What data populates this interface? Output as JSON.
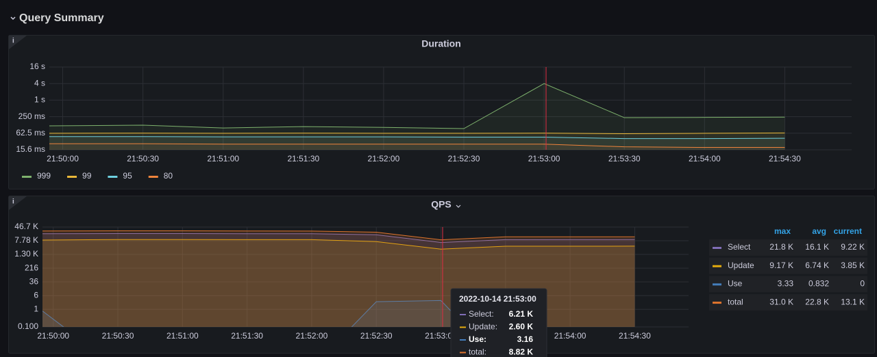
{
  "header": {
    "title": "Query Summary"
  },
  "chart_data": [
    {
      "type": "line",
      "title": "Duration",
      "yscale": "log",
      "grid": true,
      "legend": "bottom",
      "x": [
        "21:49:55",
        "21:50:30",
        "21:51:00",
        "21:51:30",
        "21:52:00",
        "21:52:30",
        "21:53:00",
        "21:53:30",
        "21:54:00",
        "21:54:30"
      ],
      "xlim": [
        "21:49:55",
        "21:54:55"
      ],
      "xticks": [
        "21:50:00",
        "21:50:30",
        "21:51:00",
        "21:51:30",
        "21:52:00",
        "21:52:30",
        "21:53:00",
        "21:53:30",
        "21:54:00",
        "21:54:30"
      ],
      "ylim": [
        15.6,
        16000
      ],
      "yticks": [
        {
          "value": 15.6,
          "label": "15.6 ms"
        },
        {
          "value": 62.5,
          "label": "62.5 ms"
        },
        {
          "value": 250,
          "label": "250 ms"
        },
        {
          "value": 1000,
          "label": "1 s"
        },
        {
          "value": 4000,
          "label": "4 s"
        },
        {
          "value": 16000,
          "label": "16 s"
        }
      ],
      "series": [
        {
          "name": "999",
          "color": "#7eb26d",
          "values": [
            116,
            123,
            97,
            109,
            102,
            92,
            4000,
            230,
            235,
            240
          ]
        },
        {
          "name": "99",
          "color": "#eab839",
          "values": [
            62,
            63,
            62,
            63,
            62,
            62,
            63,
            60,
            62,
            64
          ]
        },
        {
          "name": "95",
          "color": "#6ed0e0",
          "values": [
            47,
            47,
            46,
            46,
            46,
            45,
            45,
            40,
            40,
            41
          ]
        },
        {
          "name": "80",
          "color": "#ef843c",
          "values": [
            26,
            26,
            25,
            25,
            25,
            25,
            25,
            20,
            19,
            19
          ]
        }
      ]
    },
    {
      "type": "line",
      "title": "QPS",
      "yscale": "log",
      "grid": true,
      "legend": "right",
      "x": [
        "21:49:55",
        "21:50:30",
        "21:51:00",
        "21:51:30",
        "21:52:00",
        "21:52:30",
        "21:53:00",
        "21:53:30",
        "21:54:00",
        "21:54:30"
      ],
      "xlim": [
        "21:49:55",
        "21:54:55"
      ],
      "xticks": [
        "21:50:00",
        "21:50:30",
        "21:51:00",
        "21:51:30",
        "21:52:00",
        "21:52:30",
        "21:53:00",
        "21:53:30",
        "21:54:00",
        "21:54:30"
      ],
      "ylim": [
        0.1,
        46700
      ],
      "yticks": [
        {
          "value": 0.1,
          "label": "0.100"
        },
        1,
        6,
        36,
        216,
        {
          "value": 1300,
          "label": "1.30 K"
        },
        {
          "value": 7780,
          "label": "7.78 K"
        },
        {
          "value": 46700,
          "label": "46.7 K"
        }
      ],
      "series": [
        {
          "name": "Select",
          "color": "#806eb7",
          "values": [
            19500,
            20000,
            20000,
            19500,
            19500,
            17000,
            6210,
            9000,
            9100,
            9220
          ]
        },
        {
          "name": "Update",
          "color": "#e5ac0e",
          "values": [
            8500,
            9170,
            9170,
            9000,
            9000,
            7000,
            2600,
            3800,
            3800,
            3850
          ]
        },
        {
          "name": "Use",
          "color": "#447ebc",
          "values": [
            0.8,
            0,
            0,
            0,
            0,
            2.7,
            3.16,
            0,
            0,
            0
          ]
        },
        {
          "name": "total",
          "color": "#e0752d",
          "values": [
            28000,
            28500,
            28500,
            28000,
            27500,
            24000,
            8820,
            13000,
            13000,
            13100
          ]
        }
      ],
      "legend_table": {
        "columns": [
          "max",
          "avg",
          "current"
        ],
        "rows": [
          [
            "21.8 K",
            "16.1 K",
            "9.22 K"
          ],
          [
            "9.17 K",
            "6.74 K",
            "3.85 K"
          ],
          [
            "3.33",
            "0.832",
            "0"
          ],
          [
            "31.0 K",
            "22.8 K",
            "13.1 K"
          ]
        ]
      },
      "tooltip": {
        "time": "2022-10-14 21:53:00",
        "items": [
          {
            "name": "Select:",
            "value": "6.21 K"
          },
          {
            "name": "Update:",
            "value": "2.60 K"
          },
          {
            "name": "Use:",
            "value": "3.16"
          },
          {
            "name": "total:",
            "value": "8.82 K"
          }
        ]
      }
    }
  ]
}
